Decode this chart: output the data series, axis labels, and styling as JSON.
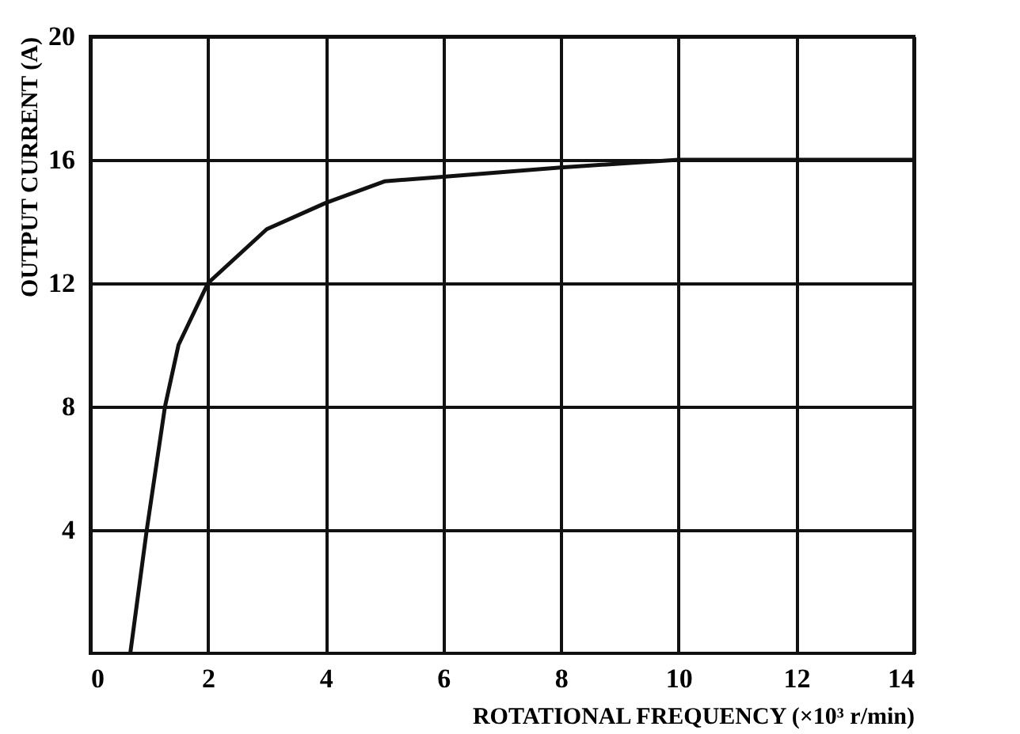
{
  "chart_data": {
    "type": "line",
    "xlabel": "ROTATIONAL FREQUENCY (×10³ r/min)",
    "ylabel": "OUTPUT CURRENT (A)",
    "x": [
      0.68,
      0.96,
      1.27,
      1.5,
      2.0,
      3,
      4,
      5,
      6,
      8,
      10,
      12,
      14
    ],
    "series": [
      {
        "color": "#111111",
        "values": [
          0,
          4,
          8,
          10,
          12,
          13.75,
          14.6,
          15.3,
          15.45,
          15.75,
          16.0,
          16.0,
          16.0
        ]
      }
    ],
    "xlim": [
      0,
      14
    ],
    "ylim": [
      0,
      20
    ],
    "xticks": [
      0,
      2,
      4,
      6,
      8,
      10,
      12,
      14
    ],
    "yticks": [
      4,
      8,
      12,
      16,
      20
    ],
    "grid": true,
    "marker": "none",
    "line_style": "solid"
  }
}
